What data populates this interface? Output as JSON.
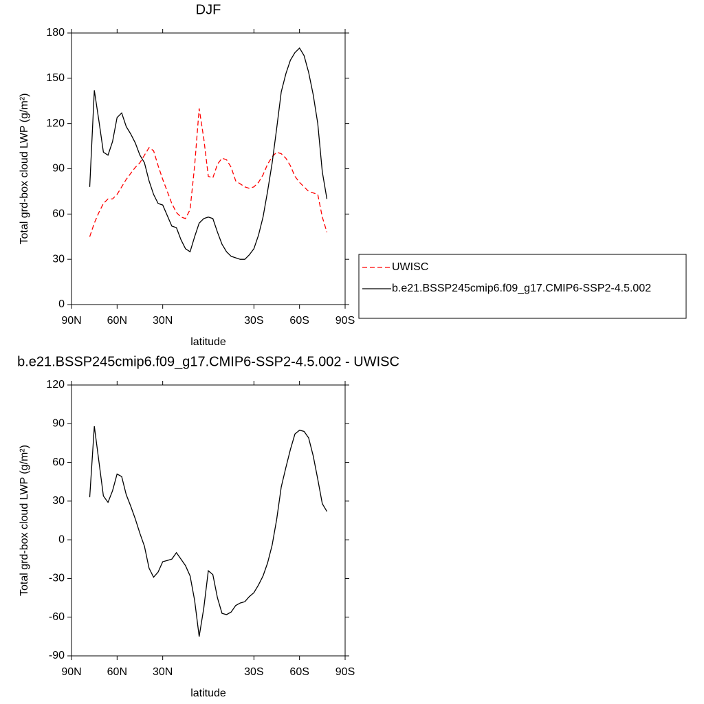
{
  "chart_data": [
    {
      "type": "line",
      "title": "DJF",
      "xlabel": "latitude",
      "ylabel": "Total grd-box cloud LWP (g/m²)",
      "x": [
        78,
        75,
        72,
        69,
        66,
        63,
        60,
        57,
        54,
        51,
        48,
        45,
        42,
        39,
        36,
        33,
        30,
        27,
        24,
        21,
        18,
        15,
        12,
        9,
        6,
        3,
        0,
        -3,
        -6,
        -9,
        -12,
        -15,
        -18,
        -21,
        -24,
        -27,
        -30,
        -33,
        -36,
        -39,
        -42,
        -45,
        -48,
        -51,
        -54,
        -57,
        -60,
        -63,
        -66,
        -69,
        -72,
        -75,
        -78
      ],
      "series": [
        {
          "name": "UWISC",
          "color": "#ff0000",
          "line_style": "dashed",
          "values": [
            45,
            54,
            61,
            67,
            70,
            70,
            73,
            78,
            83,
            87,
            91,
            94,
            99,
            104,
            102,
            92,
            83,
            75,
            67,
            61,
            58,
            57,
            63,
            92,
            130,
            110,
            85,
            84,
            93,
            97,
            96,
            91,
            82,
            80,
            78,
            77,
            78,
            81,
            86,
            93,
            98,
            101,
            100,
            97,
            92,
            85,
            81,
            78,
            75,
            74,
            73,
            58,
            48
          ]
        },
        {
          "name": "b.e21.BSSP245cmip6.f09_g17.CMIP6-SSP2-4.5.002",
          "color": "#000000",
          "line_style": "solid",
          "values": [
            78,
            142,
            122,
            101,
            99,
            108,
            124,
            127,
            118,
            113,
            107,
            99,
            94,
            82,
            73,
            67,
            66,
            59,
            52,
            51,
            43,
            37,
            35,
            45,
            54,
            57,
            58,
            57,
            48,
            40,
            35,
            32,
            31,
            30,
            30,
            33,
            37,
            46,
            58,
            75,
            94,
            117,
            141,
            153,
            162,
            167,
            170,
            165,
            154,
            139,
            120,
            88,
            70
          ]
        }
      ],
      "xlim": [
        90,
        -90
      ],
      "xticks": [
        {
          "value": 90,
          "label": "90N"
        },
        {
          "value": 60,
          "label": "60N"
        },
        {
          "value": 30,
          "label": "30N"
        },
        {
          "value": -30,
          "label": "30S"
        },
        {
          "value": -60,
          "label": "60S"
        },
        {
          "value": -90,
          "label": "90S"
        }
      ],
      "ylim": [
        0,
        180
      ],
      "yticks": [
        0,
        30,
        60,
        90,
        120,
        150,
        180
      ],
      "legend": "right"
    },
    {
      "type": "line",
      "title": "b.e21.BSSP245cmip6.f09_g17.CMIP6-SSP2-4.5.002 - UWISC",
      "xlabel": "latitude",
      "ylabel": "Total grd-box cloud LWP (g/m²)",
      "x": [
        78,
        75,
        72,
        69,
        66,
        63,
        60,
        57,
        54,
        51,
        48,
        45,
        42,
        39,
        36,
        33,
        30,
        27,
        24,
        21,
        18,
        15,
        12,
        9,
        6,
        3,
        0,
        -3,
        -6,
        -9,
        -12,
        -15,
        -18,
        -21,
        -24,
        -27,
        -30,
        -33,
        -36,
        -39,
        -42,
        -45,
        -48,
        -51,
        -54,
        -57,
        -60,
        -63,
        -66,
        -69,
        -72,
        -75,
        -78
      ],
      "series": [
        {
          "color": "#000000",
          "line_style": "solid",
          "values": [
            33,
            88,
            61,
            34,
            29,
            38,
            51,
            49,
            35,
            26,
            16,
            5,
            -5,
            -22,
            -29,
            -25,
            -17,
            -16,
            -15,
            -10,
            -15,
            -20,
            -28,
            -47,
            -75,
            -53,
            -24,
            -27,
            -45,
            -57,
            -58,
            -56,
            -51,
            -49,
            -48,
            -44,
            -41,
            -35,
            -28,
            -18,
            -4,
            16,
            41,
            56,
            70,
            82,
            85,
            84,
            79,
            65,
            47,
            28,
            22
          ]
        }
      ],
      "xlim": [
        90,
        -90
      ],
      "xticks": [
        {
          "value": 90,
          "label": "90N"
        },
        {
          "value": 60,
          "label": "60N"
        },
        {
          "value": 30,
          "label": "30N"
        },
        {
          "value": -30,
          "label": "30S"
        },
        {
          "value": -60,
          "label": "60S"
        },
        {
          "value": -90,
          "label": "90S"
        }
      ],
      "ylim": [
        -90,
        120
      ],
      "yticks": [
        -90,
        -60,
        -30,
        0,
        30,
        60,
        90,
        120
      ]
    }
  ]
}
